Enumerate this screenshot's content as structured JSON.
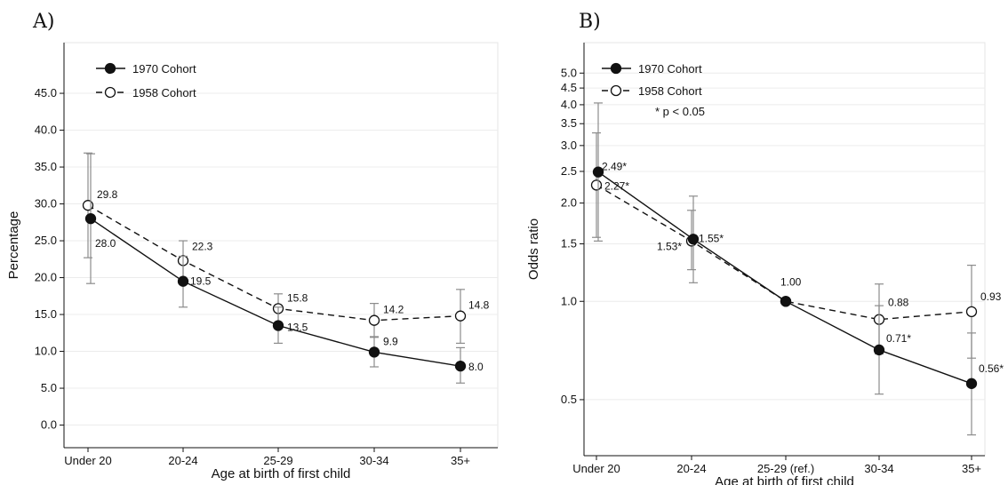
{
  "panels": [
    {
      "panel_label": "A)",
      "chart_data": {
        "type": "line",
        "scale": "linear",
        "xlabel": "Age at birth of first child",
        "ylabel": "Percentage",
        "categories": [
          "Under 20",
          "20-24",
          "25-29",
          "30-34",
          "35+"
        ],
        "ylim": [
          -1.5,
          48.5
        ],
        "yticks": [
          0,
          5,
          10,
          15,
          20,
          25,
          30,
          35,
          40,
          45
        ],
        "ytick_labels": [
          "0.0",
          "5.0",
          "10.0",
          "15.0",
          "20.0",
          "25.0",
          "30.0",
          "35.0",
          "40.0",
          "45.0"
        ],
        "grid": true,
        "legend_position": "top-left",
        "note": "",
        "series": [
          {
            "name": "1970 Cohort",
            "style": "solid",
            "marker": "filled",
            "values": [
              28.0,
              19.5,
              13.5,
              9.9,
              8.0
            ],
            "ci_low": [
              19.2,
              16.0,
              11.1,
              7.9,
              5.7
            ],
            "ci_high": [
              36.8,
              22.9,
              16.0,
              12.0,
              10.5
            ],
            "labels": [
              "28.0",
              "19.5",
              "13.5",
              "9.9",
              "8.0"
            ]
          },
          {
            "name": "1958 Cohort",
            "style": "dashed",
            "marker": "hollow",
            "values": [
              29.8,
              22.3,
              15.8,
              14.2,
              14.8
            ],
            "ci_low": [
              22.7,
              19.6,
              13.9,
              11.9,
              11.1
            ],
            "ci_high": [
              36.9,
              25.0,
              17.8,
              16.5,
              18.4
            ],
            "labels": [
              "29.8",
              "22.3",
              "15.8",
              "14.2",
              "14.8"
            ]
          }
        ]
      }
    },
    {
      "panel_label": "B)",
      "chart_data": {
        "type": "line",
        "scale": "log",
        "xlabel": "Age at birth of first child",
        "ylabel": "Odds ratio",
        "categories": [
          "Under 20",
          "20-24",
          "25-29 (ref.)",
          "30-34",
          "35+"
        ],
        "ylim": [
          0.37,
          5.4
        ],
        "yticks": [
          0.5,
          1.0,
          1.5,
          2.0,
          2.5,
          3.0,
          3.5,
          4.0,
          4.5,
          5.0
        ],
        "ytick_labels": [
          "0.5",
          "1.0",
          "1.5",
          "2.0",
          "2.5",
          "3.0",
          "3.5",
          "4.0",
          "4.5",
          "5.0"
        ],
        "grid": true,
        "legend_position": "top-left",
        "note": "* p < 0.05",
        "series": [
          {
            "name": "1970 Cohort",
            "style": "solid",
            "marker": "filled",
            "values": [
              2.49,
              1.55,
              1.0,
              0.71,
              0.56
            ],
            "ci_low": [
              1.53,
              1.14,
              null,
              0.52,
              0.39
            ],
            "ci_high": [
              4.05,
              2.1,
              null,
              0.97,
              0.8
            ],
            "labels": [
              "2.49*",
              "1.55*",
              "1.00",
              "0.71*",
              "0.56*"
            ]
          },
          {
            "name": "1958 Cohort",
            "style": "dashed",
            "marker": "hollow",
            "values": [
              2.27,
              1.53,
              1.0,
              0.88,
              0.93
            ],
            "ci_low": [
              1.57,
              1.25,
              null,
              0.69,
              0.67
            ],
            "ci_high": [
              3.28,
              1.9,
              null,
              1.13,
              1.29
            ],
            "labels": [
              "2.27*",
              "1.53*",
              "",
              "0.88",
              "0.93"
            ]
          }
        ]
      }
    }
  ]
}
